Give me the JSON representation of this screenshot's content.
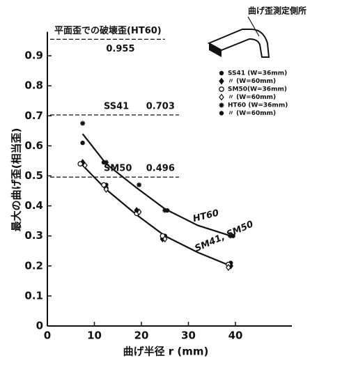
{
  "chart_data": {
    "type": "scatter",
    "x_label": "曲げ半径 r (mm)",
    "y_label": "最大の曲げ歪(相当歪)",
    "xlim": [
      0,
      52
    ],
    "ylim": [
      0,
      0.98
    ],
    "xticks": [
      0,
      10,
      20,
      30,
      40
    ],
    "yticks": [
      0,
      0.1,
      0.2,
      0.3,
      0.4,
      0.5,
      0.6,
      0.7,
      0.8,
      0.9
    ],
    "inset_label": "曲げ歪測定側所",
    "reference_lines": [
      {
        "label": "平面歪での破壊歪(HT60)",
        "value": 0.955
      },
      {
        "label": "SS41",
        "value": 0.703
      },
      {
        "label": "SM50",
        "value": 0.496
      }
    ],
    "series": [
      {
        "name": "SS41 (W=36mm)",
        "marker": "circle-filled",
        "x": [
          7.5,
          12.5,
          19.5,
          25,
          39
        ],
        "values": [
          0.61,
          0.47,
          0.38,
          0.3,
          0.21
        ]
      },
      {
        "name": "〃  (W=60mm)",
        "marker": "diamond-filled",
        "x": [
          7.5,
          12.5,
          19,
          24.5,
          39
        ],
        "values": [
          0.545,
          0.46,
          0.385,
          0.29,
          0.2
        ]
      },
      {
        "name": "SM50(W=36mm)",
        "marker": "circle-open",
        "x": [
          7,
          12,
          19,
          24.5,
          38.5
        ],
        "values": [
          0.54,
          0.47,
          0.375,
          0.3,
          0.205
        ]
      },
      {
        "name": "〃  (W=60mm)",
        "marker": "diamond-open",
        "x": [
          8,
          12.5,
          19.5,
          25,
          38.5
        ],
        "values": [
          0.535,
          0.455,
          0.38,
          0.29,
          0.195
        ]
      },
      {
        "name": "HT60 (W=36mm)",
        "marker": "asterisk",
        "x": [
          7.5,
          12.5,
          19.5,
          25,
          39
        ],
        "values": [
          0.675,
          0.545,
          0.47,
          0.385,
          0.3
        ]
      },
      {
        "name": "〃  (W=60mm)",
        "marker": "circle-filled",
        "x": [
          12,
          19,
          25.5,
          39.5
        ],
        "values": [
          0.545,
          0.385,
          0.385,
          0.3
        ]
      }
    ],
    "curves": [
      {
        "name": "HT60",
        "x": [
          7.5,
          12.5,
          19,
          25,
          32,
          39
        ],
        "values": [
          0.64,
          0.54,
          0.46,
          0.39,
          0.335,
          0.3
        ]
      },
      {
        "name": "SM41, SM50",
        "x": [
          7.5,
          12.5,
          19,
          25,
          32,
          39
        ],
        "values": [
          0.535,
          0.455,
          0.37,
          0.3,
          0.245,
          0.2
        ]
      }
    ]
  }
}
